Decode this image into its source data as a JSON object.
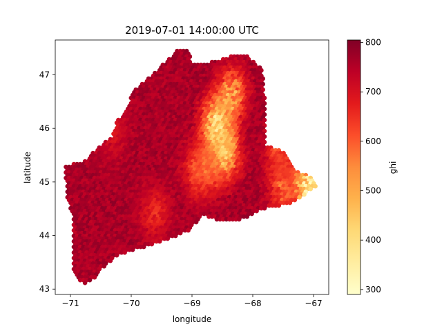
{
  "chart_data": {
    "type": "scatter",
    "title": "2019-07-01 14:00:00 UTC",
    "xlabel": "longitude",
    "ylabel": "latitude",
    "xlim": [
      -71.25,
      -66.75
    ],
    "ylim": [
      42.9,
      47.65
    ],
    "xticks": [
      -71,
      -70,
      -69,
      -68,
      -67
    ],
    "xtick_labels": [
      "−71",
      "−70",
      "−69",
      "−68",
      "−67"
    ],
    "yticks": [
      43,
      44,
      45,
      46,
      47
    ],
    "yticks_labels": [
      "43",
      "44",
      "45",
      "46",
      "47"
    ],
    "colorbar": {
      "label": "ghi",
      "range": [
        290,
        805
      ],
      "ticks": [
        300,
        400,
        500,
        600,
        700,
        800
      ],
      "tick_labels": [
        "300",
        "400",
        "500",
        "600",
        "700",
        "800"
      ],
      "colormap": "YlOrRd",
      "colormap_stops": [
        "#ffffcc",
        "#ffeda0",
        "#fed976",
        "#feb24c",
        "#fd8d3c",
        "#fc4e2a",
        "#e31a1c",
        "#bd0026",
        "#800026"
      ]
    },
    "region_outline": [
      [
        -71.05,
        45.3
      ],
      [
        -70.75,
        45.4
      ],
      [
        -70.55,
        45.65
      ],
      [
        -70.3,
        45.85
      ],
      [
        -70.25,
        46.1
      ],
      [
        -70.05,
        46.4
      ],
      [
        -70.0,
        46.65
      ],
      [
        -69.7,
        46.95
      ],
      [
        -69.25,
        47.45
      ],
      [
        -69.05,
        47.45
      ],
      [
        -69.0,
        47.2
      ],
      [
        -68.6,
        47.25
      ],
      [
        -68.35,
        47.35
      ],
      [
        -68.1,
        47.35
      ],
      [
        -67.85,
        47.1
      ],
      [
        -67.78,
        46.4
      ],
      [
        -67.8,
        45.7
      ],
      [
        -67.6,
        45.6
      ],
      [
        -67.45,
        45.55
      ],
      [
        -67.3,
        45.2
      ],
      [
        -67.05,
        45.1
      ],
      [
        -66.95,
        44.9
      ],
      [
        -67.4,
        44.6
      ],
      [
        -67.8,
        44.5
      ],
      [
        -68.2,
        44.3
      ],
      [
        -68.55,
        44.25
      ],
      [
        -68.8,
        44.4
      ],
      [
        -69.05,
        44.1
      ],
      [
        -69.35,
        43.95
      ],
      [
        -69.6,
        43.85
      ],
      [
        -69.9,
        43.75
      ],
      [
        -70.2,
        43.65
      ],
      [
        -70.5,
        43.35
      ],
      [
        -70.65,
        43.15
      ],
      [
        -70.8,
        43.1
      ],
      [
        -70.95,
        43.3
      ],
      [
        -70.95,
        44.3
      ],
      [
        -71.05,
        44.7
      ],
      [
        -71.1,
        45.3
      ]
    ],
    "ghi_base": 760,
    "low_ghi_zones": [
      {
        "lon": -68.35,
        "lat": 46.6,
        "ghi": 470
      },
      {
        "lon": -68.6,
        "lat": 46.05,
        "ghi": 380
      },
      {
        "lon": -68.45,
        "lat": 45.55,
        "ghi": 420
      },
      {
        "lon": -68.7,
        "lat": 45.3,
        "ghi": 560
      },
      {
        "lon": -68.9,
        "lat": 45.2,
        "ghi": 600
      },
      {
        "lon": -67.1,
        "lat": 44.95,
        "ghi": 360
      },
      {
        "lon": -67.5,
        "lat": 44.85,
        "ghi": 580
      },
      {
        "lon": -67.55,
        "lat": 45.55,
        "ghi": 610
      },
      {
        "lon": -69.6,
        "lat": 44.4,
        "ghi": 650
      },
      {
        "lon": -70.3,
        "lat": 45.9,
        "ghi": 690
      }
    ]
  }
}
